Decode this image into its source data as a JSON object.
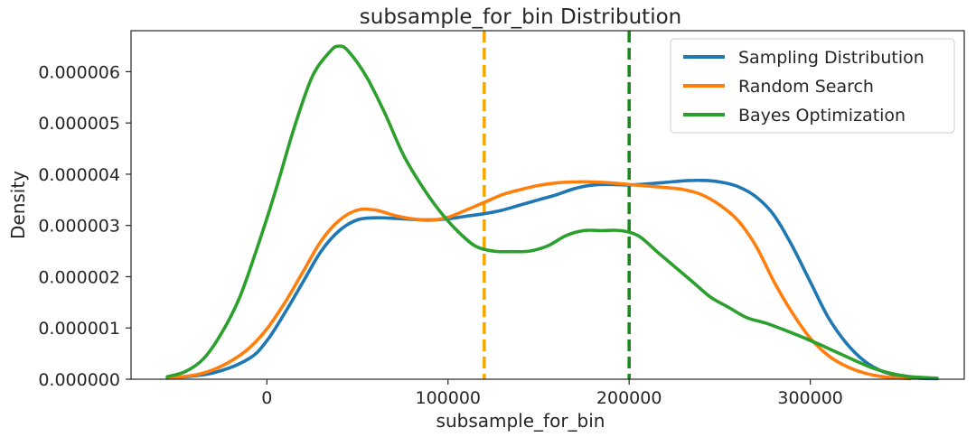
{
  "chart_data": {
    "type": "line",
    "title": "subsample_for_bin Distribution",
    "xlabel": "subsample_for_bin",
    "ylabel": "Density",
    "xlim": [
      -75000,
      385000
    ],
    "ylim": [
      0,
      6.8e-06
    ],
    "x_ticks": [
      0,
      100000,
      200000,
      300000
    ],
    "x_tick_labels": [
      "0",
      "100000",
      "200000",
      "300000"
    ],
    "y_ticks": [
      0,
      1e-06,
      2e-06,
      3e-06,
      4e-06,
      5e-06,
      6e-06
    ],
    "y_tick_labels": [
      "0.000000",
      "0.000001",
      "0.000002",
      "0.000003",
      "0.000004",
      "0.000005",
      "0.000006"
    ],
    "grid": false,
    "legend_position": "top-right",
    "series": [
      {
        "name": "Sampling Distribution",
        "color": "#1f77b4",
        "points": [
          [
            -55000,
            2e-08
          ],
          [
            -30000,
            1.2e-07
          ],
          [
            -10000,
            4e-07
          ],
          [
            0,
            7.5e-07
          ],
          [
            10000,
            1.3e-06
          ],
          [
            20000,
            1.9e-06
          ],
          [
            30000,
            2.5e-06
          ],
          [
            40000,
            2.9e-06
          ],
          [
            50000,
            3.11e-06
          ],
          [
            60000,
            3.15e-06
          ],
          [
            70000,
            3.14e-06
          ],
          [
            80000,
            3.12e-06
          ],
          [
            90000,
            3.11e-06
          ],
          [
            100000,
            3.13e-06
          ],
          [
            110000,
            3.18e-06
          ],
          [
            120000,
            3.23e-06
          ],
          [
            130000,
            3.3e-06
          ],
          [
            140000,
            3.4e-06
          ],
          [
            150000,
            3.5e-06
          ],
          [
            160000,
            3.6e-06
          ],
          [
            170000,
            3.72e-06
          ],
          [
            180000,
            3.79e-06
          ],
          [
            190000,
            3.8e-06
          ],
          [
            200000,
            3.79e-06
          ],
          [
            210000,
            3.81e-06
          ],
          [
            220000,
            3.84e-06
          ],
          [
            230000,
            3.87e-06
          ],
          [
            240000,
            3.88e-06
          ],
          [
            250000,
            3.85e-06
          ],
          [
            260000,
            3.76e-06
          ],
          [
            270000,
            3.56e-06
          ],
          [
            280000,
            3.2e-06
          ],
          [
            290000,
            2.6e-06
          ],
          [
            300000,
            1.9e-06
          ],
          [
            310000,
            1.2e-06
          ],
          [
            320000,
            7e-07
          ],
          [
            330000,
            3.5e-07
          ],
          [
            340000,
            1.5e-07
          ],
          [
            350000,
            6e-08
          ],
          [
            360000,
            2e-08
          ],
          [
            370000,
            1e-08
          ]
        ]
      },
      {
        "name": "Random Search",
        "color": "#ff7f0e",
        "points": [
          [
            -55000,
            2e-08
          ],
          [
            -40000,
            8e-08
          ],
          [
            -30000,
            1.8e-07
          ],
          [
            -20000,
            3.5e-07
          ],
          [
            -10000,
            6e-07
          ],
          [
            0,
            9.8e-07
          ],
          [
            10000,
            1.5e-06
          ],
          [
            20000,
            2.1e-06
          ],
          [
            30000,
            2.7e-06
          ],
          [
            40000,
            3.1e-06
          ],
          [
            50000,
            3.3e-06
          ],
          [
            60000,
            3.3e-06
          ],
          [
            70000,
            3.2e-06
          ],
          [
            80000,
            3.13e-06
          ],
          [
            90000,
            3.1e-06
          ],
          [
            100000,
            3.16e-06
          ],
          [
            110000,
            3.3e-06
          ],
          [
            120000,
            3.45e-06
          ],
          [
            130000,
            3.6e-06
          ],
          [
            140000,
            3.7e-06
          ],
          [
            150000,
            3.78e-06
          ],
          [
            160000,
            3.83e-06
          ],
          [
            170000,
            3.85e-06
          ],
          [
            180000,
            3.85e-06
          ],
          [
            190000,
            3.83e-06
          ],
          [
            200000,
            3.8e-06
          ],
          [
            210000,
            3.77e-06
          ],
          [
            220000,
            3.74e-06
          ],
          [
            230000,
            3.7e-06
          ],
          [
            240000,
            3.6e-06
          ],
          [
            250000,
            3.4e-06
          ],
          [
            260000,
            3.1e-06
          ],
          [
            270000,
            2.6e-06
          ],
          [
            280000,
            1.9e-06
          ],
          [
            290000,
            1.3e-06
          ],
          [
            300000,
            8e-07
          ],
          [
            310000,
            4.6e-07
          ],
          [
            320000,
            2.5e-07
          ],
          [
            330000,
            1.2e-07
          ],
          [
            340000,
            5e-08
          ],
          [
            355000,
            1e-08
          ]
        ]
      },
      {
        "name": "Bayes Optimization",
        "color": "#2ca02c",
        "points": [
          [
            -55000,
            5e-08
          ],
          [
            -45000,
            1.5e-07
          ],
          [
            -35000,
            4e-07
          ],
          [
            -25000,
            9e-07
          ],
          [
            -15000,
            1.6e-06
          ],
          [
            -5000,
            2.6e-06
          ],
          [
            5000,
            3.7e-06
          ],
          [
            15000,
            4.9e-06
          ],
          [
            25000,
            5.9e-06
          ],
          [
            35000,
            6.4e-06
          ],
          [
            40000,
            6.5e-06
          ],
          [
            45000,
            6.4e-06
          ],
          [
            55000,
            5.9e-06
          ],
          [
            65000,
            5.2e-06
          ],
          [
            75000,
            4.4e-06
          ],
          [
            85000,
            3.8e-06
          ],
          [
            95000,
            3.3e-06
          ],
          [
            105000,
            2.9e-06
          ],
          [
            115000,
            2.6e-06
          ],
          [
            125000,
            2.5e-06
          ],
          [
            135000,
            2.49e-06
          ],
          [
            145000,
            2.5e-06
          ],
          [
            155000,
            2.6e-06
          ],
          [
            165000,
            2.8e-06
          ],
          [
            175000,
            2.9e-06
          ],
          [
            185000,
            2.9e-06
          ],
          [
            195000,
            2.9e-06
          ],
          [
            205000,
            2.8e-06
          ],
          [
            215000,
            2.5e-06
          ],
          [
            225000,
            2.2e-06
          ],
          [
            235000,
            1.9e-06
          ],
          [
            245000,
            1.6e-06
          ],
          [
            255000,
            1.4e-06
          ],
          [
            265000,
            1.2e-06
          ],
          [
            275000,
            1.1e-06
          ],
          [
            285000,
            9.7e-07
          ],
          [
            295000,
            8.3e-07
          ],
          [
            305000,
            6.8e-07
          ],
          [
            315000,
            5.2e-07
          ],
          [
            325000,
            3.6e-07
          ],
          [
            335000,
            2.1e-07
          ],
          [
            345000,
            1.1e-07
          ],
          [
            355000,
            5e-08
          ],
          [
            370000,
            2e-08
          ]
        ]
      }
    ],
    "vlines": [
      {
        "x": 120000,
        "color": "#f5a800",
        "style": "dashed"
      },
      {
        "x": 200000,
        "color": "#1e8a1e",
        "style": "dashed"
      }
    ]
  }
}
